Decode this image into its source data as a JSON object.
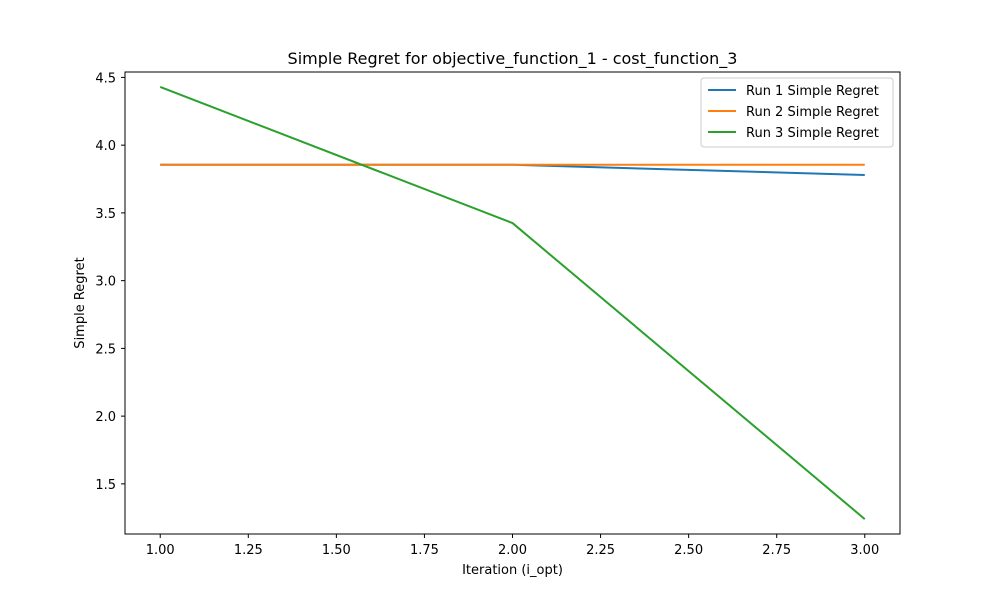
{
  "chart_data": {
    "type": "line",
    "title": "Simple Regret for objective_function_1 - cost_function_3",
    "xlabel": "Iteration (i_opt)",
    "ylabel": "Simple Regret",
    "x": [
      1,
      2,
      3
    ],
    "xlim": [
      0.9,
      3.1
    ],
    "ylim": [
      1.13,
      4.54
    ],
    "xticks": [
      1.0,
      1.25,
      1.5,
      1.75,
      2.0,
      2.25,
      2.5,
      2.75,
      3.0
    ],
    "xtick_labels": [
      "1.00",
      "1.25",
      "1.50",
      "1.75",
      "2.00",
      "2.25",
      "2.50",
      "2.75",
      "3.00"
    ],
    "yticks": [
      1.5,
      2.0,
      2.5,
      3.0,
      3.5,
      4.0,
      4.5
    ],
    "ytick_labels": [
      "1.5",
      "2.0",
      "2.5",
      "3.0",
      "3.5",
      "4.0",
      "4.5"
    ],
    "grid": false,
    "legend_position": "top-right",
    "series": [
      {
        "name": "Run 1 Simple Regret",
        "color": "#1f77b4",
        "values": [
          3.855,
          3.855,
          3.78
        ]
      },
      {
        "name": "Run 2 Simple Regret",
        "color": "#ff7f0e",
        "values": [
          3.855,
          3.855,
          3.855
        ]
      },
      {
        "name": "Run 3 Simple Regret",
        "color": "#2ca02c",
        "values": [
          4.43,
          3.425,
          1.24
        ]
      }
    ]
  }
}
